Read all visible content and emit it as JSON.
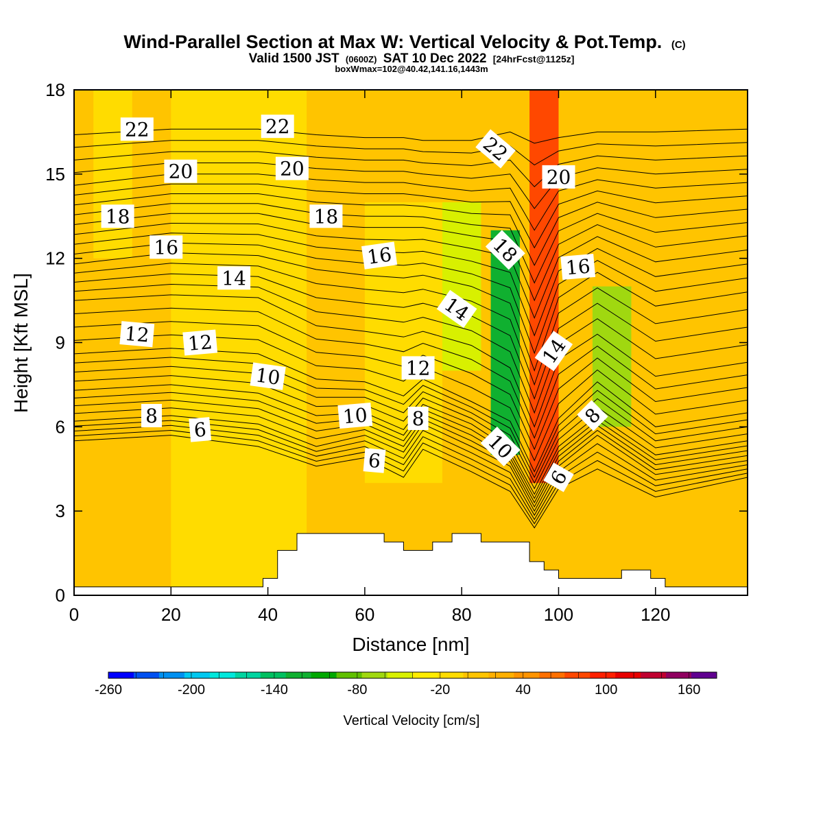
{
  "chart_data": {
    "type": "heatmap",
    "title": "Wind-Parallel Section at Max W: Vertical Velocity & Pot.Temp.",
    "title_mark": "(C)",
    "subtitle_main": "Valid 1500 JST",
    "subtitle_utc": "(0600Z)",
    "subtitle_date": "SAT 10 Dec 2022",
    "subtitle_fcst": "[24hrFcst@1125z]",
    "subtitle2": "boxWmax=102@40.42,141.16,1443m",
    "xlabel": "Distance [nm]",
    "ylabel": "Height [Kft MSL]",
    "xlim": [
      0,
      139
    ],
    "ylim": [
      0,
      18
    ],
    "xticks": [
      0,
      20,
      40,
      60,
      80,
      100,
      120
    ],
    "yticks": [
      0,
      3,
      6,
      9,
      12,
      15,
      18
    ],
    "colorbar": {
      "label": "Vertical Velocity [cm/s]",
      "min": -260,
      "max": 180,
      "step": 20,
      "tick_labels": [
        -260,
        -200,
        -140,
        -80,
        -20,
        40,
        100,
        160
      ],
      "colors": [
        "#0000ff",
        "#0050f0",
        "#0090f0",
        "#00c8f0",
        "#00e8dc",
        "#00d4a0",
        "#00c060",
        "#10b030",
        "#00a800",
        "#60c000",
        "#a0d810",
        "#d8f000",
        "#ffec00",
        "#ffdc00",
        "#ffc400",
        "#ffb000",
        "#ff9400",
        "#ff7000",
        "#ff4800",
        "#ff2000",
        "#e80000",
        "#c00030",
        "#900060",
        "#600090"
      ]
    },
    "shading_zones": [
      {
        "x_range": [
          0,
          139
        ],
        "z_range": [
          0,
          18
        ],
        "w": 25
      },
      {
        "x_range": [
          4,
          12
        ],
        "z_range": [
          12,
          18
        ],
        "w": 15
      },
      {
        "x_range": [
          20,
          48
        ],
        "z_range": [
          0,
          18
        ],
        "w": 10
      },
      {
        "x_range": [
          60,
          76
        ],
        "z_range": [
          4,
          14
        ],
        "w": 0
      },
      {
        "x_range": [
          76,
          84
        ],
        "z_range": [
          8,
          14
        ],
        "w": -40
      },
      {
        "x_range": [
          86,
          92
        ],
        "z_range": [
          5,
          13
        ],
        "w": -110
      },
      {
        "x_range": [
          94,
          100
        ],
        "z_range": [
          4,
          18
        ],
        "w": 100
      },
      {
        "x_range": [
          107,
          115
        ],
        "z_range": [
          6,
          11
        ],
        "w": -50
      },
      {
        "x_range": [
          128,
          139
        ],
        "z_range": [
          3,
          14
        ],
        "w": 30
      }
    ],
    "theta_isentropes": [
      {
        "value": 6,
        "heights": [
          5.5,
          5.6,
          5.7,
          5.3,
          4.6,
          4.9,
          4.2,
          5.2,
          4.4,
          3.7,
          2.4,
          3.8,
          4.5,
          3.5,
          4.2
        ]
      },
      {
        "value": 8,
        "heights": [
          6.2,
          6.3,
          6.4,
          6.1,
          5.3,
          5.7,
          5.1,
          6.1,
          5.3,
          4.6,
          3.0,
          4.6,
          5.7,
          4.3,
          4.8
        ]
      },
      {
        "value": 10,
        "heights": [
          7.3,
          7.4,
          7.5,
          7.2,
          6.4,
          6.5,
          5.9,
          6.8,
          6.1,
          5.2,
          3.6,
          5.3,
          6.4,
          5.0,
          5.5
        ]
      },
      {
        "value": 12,
        "heights": [
          8.6,
          8.7,
          8.8,
          8.6,
          7.7,
          7.6,
          7.1,
          7.7,
          6.9,
          6.2,
          4.4,
          6.3,
          7.6,
          6.0,
          6.5
        ]
      },
      {
        "value": 14,
        "heights": [
          10.5,
          10.6,
          10.7,
          10.6,
          9.6,
          9.4,
          9.2,
          9.4,
          8.9,
          8.1,
          6.0,
          8.4,
          9.3,
          7.8,
          8.3
        ]
      },
      {
        "value": 16,
        "heights": [
          11.8,
          12.0,
          12.2,
          12.1,
          11.6,
          11.4,
          11.3,
          11.4,
          11.0,
          10.4,
          8.0,
          10.6,
          11.5,
          10.3,
          10.8
        ]
      },
      {
        "value": 18,
        "heights": [
          13.2,
          13.4,
          13.6,
          13.6,
          13.2,
          13.1,
          13.1,
          13.1,
          12.8,
          12.6,
          10.5,
          12.5,
          13.2,
          12.4,
          12.8
        ]
      },
      {
        "value": 20,
        "heights": [
          14.6,
          14.8,
          15.0,
          15.0,
          14.8,
          14.7,
          14.7,
          14.6,
          14.4,
          14.5,
          13.0,
          14.4,
          14.8,
          14.5,
          14.7
        ]
      },
      {
        "value": 22,
        "heights": [
          16.4,
          16.5,
          16.6,
          16.6,
          16.4,
          16.3,
          16.3,
          16.2,
          16.2,
          16.5,
          16.1,
          16.3,
          16.5,
          16.5,
          16.6
        ]
      }
    ],
    "theta_x": [
      0,
      10,
      20,
      38,
      50,
      60,
      68,
      72,
      82,
      90,
      95,
      100,
      108,
      120,
      139
    ],
    "terrain": {
      "x": [
        0,
        39,
        39,
        42,
        42,
        46,
        46,
        64,
        64,
        68,
        68,
        74,
        74,
        78,
        78,
        84,
        84,
        94,
        94,
        97,
        97,
        100,
        100,
        113,
        113,
        119,
        119,
        122,
        122,
        139
      ],
      "z": [
        0.3,
        0.3,
        0.6,
        0.6,
        1.6,
        1.6,
        2.2,
        2.2,
        1.9,
        1.9,
        1.6,
        1.6,
        1.9,
        1.9,
        2.2,
        2.2,
        1.9,
        1.9,
        1.2,
        1.2,
        0.9,
        0.9,
        0.6,
        0.6,
        0.9,
        0.9,
        0.6,
        0.6,
        0.3,
        0.3
      ]
    },
    "contour_labels": [
      {
        "text": "22",
        "x": 13,
        "z": 16.6,
        "angle": 0
      },
      {
        "text": "22",
        "x": 42,
        "z": 16.7,
        "angle": 0
      },
      {
        "text": "22",
        "x": 87,
        "z": 15.9,
        "angle": 40
      },
      {
        "text": "20",
        "x": 22,
        "z": 15.1,
        "angle": 0
      },
      {
        "text": "20",
        "x": 45,
        "z": 15.2,
        "angle": 0
      },
      {
        "text": "20",
        "x": 100,
        "z": 14.9,
        "angle": 0
      },
      {
        "text": "18",
        "x": 9,
        "z": 13.5,
        "angle": 0
      },
      {
        "text": "18",
        "x": 52,
        "z": 13.5,
        "angle": 0
      },
      {
        "text": "18",
        "x": 89,
        "z": 12.3,
        "angle": 45
      },
      {
        "text": "16",
        "x": 19,
        "z": 12.4,
        "angle": 0
      },
      {
        "text": "16",
        "x": 63,
        "z": 12.1,
        "angle": -8
      },
      {
        "text": "16",
        "x": 104,
        "z": 11.7,
        "angle": -5
      },
      {
        "text": "14",
        "x": 33,
        "z": 11.3,
        "angle": 0
      },
      {
        "text": "14",
        "x": 79,
        "z": 10.2,
        "angle": 35
      },
      {
        "text": "14",
        "x": 99,
        "z": 8.7,
        "angle": -55
      },
      {
        "text": "12",
        "x": 13,
        "z": 9.3,
        "angle": 5
      },
      {
        "text": "12",
        "x": 26,
        "z": 9.0,
        "angle": -5
      },
      {
        "text": "12",
        "x": 71,
        "z": 8.1,
        "angle": 0
      },
      {
        "text": "10",
        "x": 40,
        "z": 7.8,
        "angle": 8
      },
      {
        "text": "10",
        "x": 58,
        "z": 6.4,
        "angle": -5
      },
      {
        "text": "10",
        "x": 88,
        "z": 5.3,
        "angle": 45
      },
      {
        "text": "8",
        "x": 16,
        "z": 6.4,
        "angle": 0
      },
      {
        "text": "8",
        "x": 71,
        "z": 6.3,
        "angle": 0
      },
      {
        "text": "8",
        "x": 107,
        "z": 6.4,
        "angle": -45
      },
      {
        "text": "6",
        "x": 26,
        "z": 5.9,
        "angle": -5
      },
      {
        "text": "6",
        "x": 62,
        "z": 4.8,
        "angle": 5
      },
      {
        "text": "6",
        "x": 100,
        "z": 4.2,
        "angle": -60
      }
    ]
  }
}
